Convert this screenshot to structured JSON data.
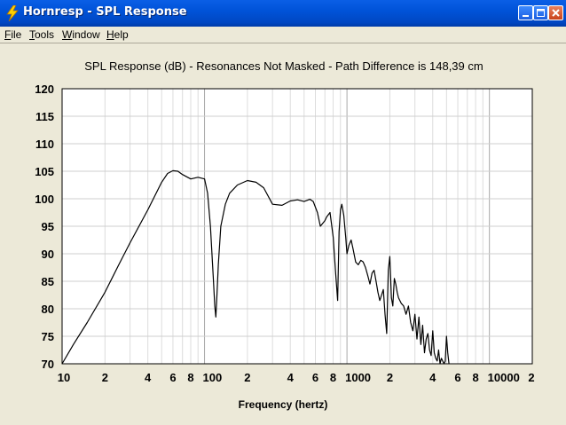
{
  "window": {
    "title": "Hornresp - SPL Response",
    "icon": "lightning-icon",
    "controls": [
      "minimize-icon",
      "maximize-icon",
      "close-icon"
    ]
  },
  "menu": [
    {
      "label": "File",
      "mnemonic": "F",
      "rest": "ile"
    },
    {
      "label": "Tools",
      "mnemonic": "T",
      "rest": "ools"
    },
    {
      "label": "Window",
      "mnemonic": "W",
      "rest": "indow"
    },
    {
      "label": "Help",
      "mnemonic": "H",
      "rest": "elp"
    }
  ],
  "chart_data": {
    "type": "line",
    "title": "SPL Response (dB) - Resonances Not Masked - Path Difference is 148,39 cm",
    "xlabel": "Frequency (hertz)",
    "ylabel": "",
    "x_scale": "log",
    "xlim": [
      10,
      20000
    ],
    "ylim": [
      70,
      120
    ],
    "yticks": [
      70,
      75,
      80,
      85,
      90,
      95,
      100,
      105,
      110,
      115,
      120
    ],
    "xtick_labels": [
      {
        "x": 10,
        "label": "10"
      },
      {
        "x": 20,
        "label": "2"
      },
      {
        "x": 40,
        "label": "4"
      },
      {
        "x": 60,
        "label": "6"
      },
      {
        "x": 80,
        "label": "8"
      },
      {
        "x": 100,
        "label": "100"
      },
      {
        "x": 200,
        "label": "2"
      },
      {
        "x": 400,
        "label": "4"
      },
      {
        "x": 600,
        "label": "6"
      },
      {
        "x": 800,
        "label": "8"
      },
      {
        "x": 1000,
        "label": "1000"
      },
      {
        "x": 2000,
        "label": "2"
      },
      {
        "x": 4000,
        "label": "4"
      },
      {
        "x": 6000,
        "label": "6"
      },
      {
        "x": 8000,
        "label": "8"
      },
      {
        "x": 10000,
        "label": "10000"
      },
      {
        "x": 20000,
        "label": "2"
      }
    ],
    "grid": true,
    "background": "#ffffff",
    "line_color": "#000000",
    "series": [
      {
        "x": [
          10,
          12,
          15,
          20,
          25,
          30,
          40,
          50,
          55,
          60,
          65,
          70,
          80,
          90,
          100,
          105,
          110,
          115,
          118,
          120,
          122,
          125,
          130,
          140,
          150,
          170,
          200,
          230,
          260,
          300,
          350,
          400,
          450,
          500,
          550,
          580,
          620,
          650,
          700,
          720,
          760,
          800,
          830,
          860,
          880,
          900,
          920,
          950,
          980,
          1000,
          1030,
          1070,
          1100,
          1150,
          1200,
          1250,
          1300,
          1350,
          1400,
          1450,
          1500,
          1550,
          1600,
          1650,
          1700,
          1750,
          1800,
          1850,
          1900,
          1950,
          2000,
          2050,
          2100,
          2150,
          2200,
          2250,
          2300,
          2400,
          2500,
          2600,
          2700,
          2800,
          2900,
          3000,
          3100,
          3200,
          3300,
          3400,
          3500,
          3600,
          3700,
          3800,
          3900,
          4000,
          4100,
          4200,
          4300,
          4400,
          4500,
          4600,
          4700,
          4800,
          4900,
          5000,
          5100,
          5200
        ],
        "y": [
          70,
          73.5,
          77.5,
          83,
          88,
          92,
          98,
          103,
          104.6,
          105.1,
          105,
          104.4,
          103.6,
          103.9,
          103.6,
          101,
          95,
          86,
          80.5,
          78.5,
          82,
          88,
          95,
          99,
          101,
          102.5,
          103.3,
          103,
          102,
          99,
          98.8,
          99.6,
          99.8,
          99.5,
          99.9,
          99.5,
          97.5,
          95,
          96,
          96.7,
          97.5,
          93,
          87,
          81.5,
          94,
          98,
          99,
          97,
          93,
          90,
          91.5,
          92.5,
          91,
          88.5,
          88,
          88.8,
          88.5,
          87.5,
          86,
          84.5,
          86.5,
          87,
          85,
          83,
          81.5,
          82.5,
          83.5,
          79,
          75.5,
          87,
          89.5,
          82,
          80.5,
          85.5,
          84.5,
          83,
          82,
          81,
          80.5,
          79,
          80.5,
          77.5,
          76,
          79,
          74.5,
          78.5,
          73.5,
          77,
          72,
          74.5,
          75.5,
          72.5,
          71.5,
          76,
          72,
          71,
          70.5,
          72.5,
          70,
          71,
          70.5,
          70,
          70.5,
          75,
          72,
          70
        ]
      }
    ]
  }
}
